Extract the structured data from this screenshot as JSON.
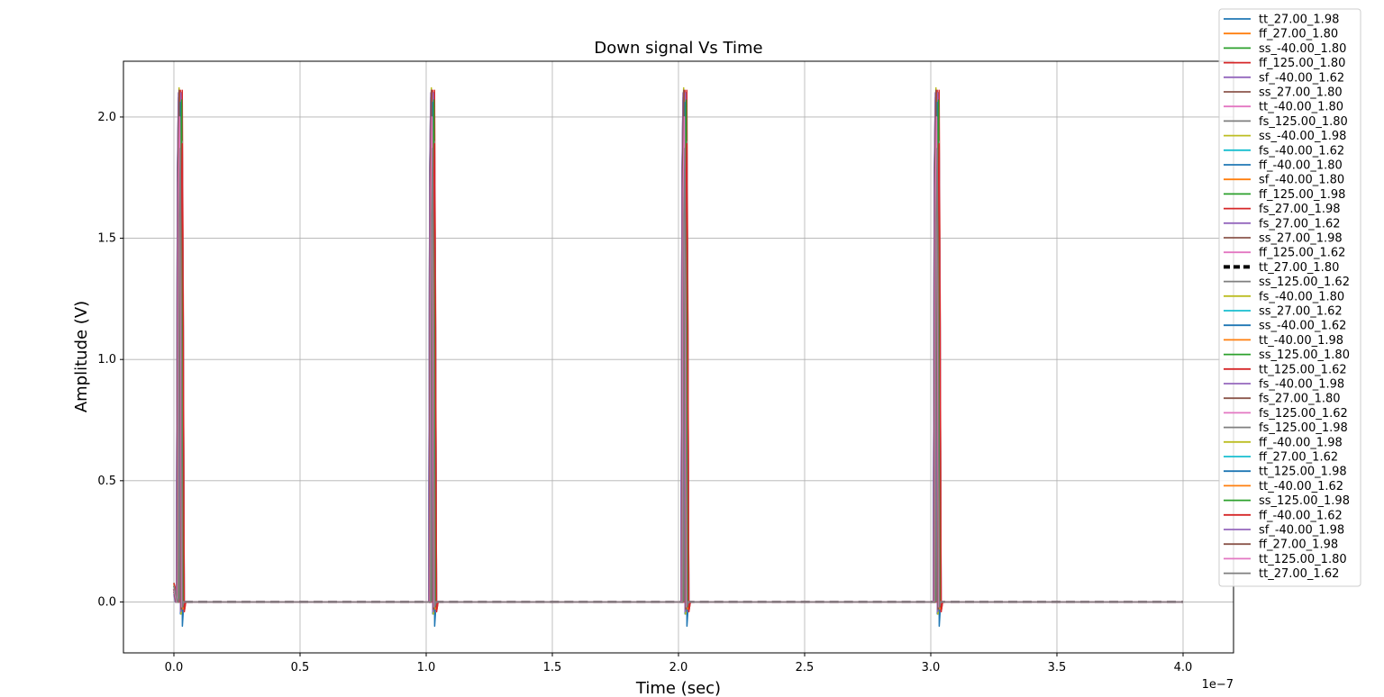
{
  "chart_data": {
    "type": "line",
    "title": "Down signal Vs Time",
    "xlabel": "Time (sec)",
    "ylabel": "Amplitude (V)",
    "x_offset_label": "1e−7",
    "xlim": [
      -0.2,
      4.2
    ],
    "ylim": [
      -0.21,
      2.23
    ],
    "x_unit_scale": 1e-07,
    "xticks": [
      "0.0",
      "0.5",
      "1.0",
      "1.5",
      "2.0",
      "2.5",
      "3.0",
      "3.5",
      "4.0"
    ],
    "yticks": [
      "0.0",
      "0.5",
      "1.0",
      "1.5",
      "2.0"
    ],
    "xtick_values": [
      0.0,
      0.5,
      1.0,
      1.5,
      2.0,
      2.5,
      3.0,
      3.5,
      4.0
    ],
    "ytick_values": [
      0.0,
      0.5,
      1.0,
      1.5,
      2.0
    ],
    "grid": true,
    "legend_position": "outside upper-right",
    "pulse_period": 1.0,
    "pulse_starts": [
      0.01,
      1.01,
      2.01,
      3.01
    ],
    "x_end": 4.0,
    "reference_series": "tt_27.00_1.80",
    "series": [
      {
        "name": "tt_27.00_1.98",
        "color": "#1f77b4",
        "peak": 2.07,
        "undershoot": -0.05
      },
      {
        "name": "ff_27.00_1.80",
        "color": "#ff7f0e",
        "peak": 2.09,
        "undershoot": -0.04
      },
      {
        "name": "ss_-40.00_1.80",
        "color": "#2ca02c",
        "peak": 2.05,
        "undershoot": -0.03
      },
      {
        "name": "ff_125.00_1.80",
        "color": "#d62728",
        "peak": 2.11,
        "undershoot": -0.04
      },
      {
        "name": "sf_-40.00_1.62",
        "color": "#9467bd",
        "peak": 2.02,
        "undershoot": -0.03
      },
      {
        "name": "ss_27.00_1.80",
        "color": "#8c564b",
        "peak": 2.04,
        "undershoot": -0.02
      },
      {
        "name": "tt_-40.00_1.80",
        "color": "#e377c2",
        "peak": 1.8,
        "undershoot": -0.03
      },
      {
        "name": "fs_125.00_1.80",
        "color": "#7f7f7f",
        "peak": 2.03,
        "undershoot": -0.04
      },
      {
        "name": "ss_-40.00_1.98",
        "color": "#bcbd22",
        "peak": 2.12,
        "undershoot": -0.05
      },
      {
        "name": "fs_-40.00_1.62",
        "color": "#17becf",
        "peak": 1.9,
        "undershoot": -0.03
      },
      {
        "name": "ff_-40.00_1.80",
        "color": "#1f77b4",
        "peak": 2.06,
        "undershoot": -0.1
      },
      {
        "name": "sf_-40.00_1.80",
        "color": "#ff7f0e",
        "peak": 2.08,
        "undershoot": -0.04
      },
      {
        "name": "ff_125.00_1.98",
        "color": "#2ca02c",
        "peak": 2.1,
        "undershoot": -0.03
      },
      {
        "name": "fs_27.00_1.98",
        "color": "#d62728",
        "peak": 2.11,
        "undershoot": -0.04
      },
      {
        "name": "fs_27.00_1.62",
        "color": "#9467bd",
        "peak": 2.0,
        "undershoot": -0.02
      },
      {
        "name": "ss_27.00_1.98",
        "color": "#8c564b",
        "peak": 2.06,
        "undershoot": -0.03
      },
      {
        "name": "ff_125.00_1.62",
        "color": "#e377c2",
        "peak": 1.85,
        "undershoot": -0.03
      },
      {
        "name": "tt_27.00_1.80",
        "color": "#000000",
        "peak": 1.92,
        "undershoot": -0.01
      },
      {
        "name": "ss_125.00_1.62",
        "color": "#7f7f7f",
        "peak": 1.95,
        "undershoot": -0.02
      },
      {
        "name": "fs_-40.00_1.80",
        "color": "#bcbd22",
        "peak": 2.04,
        "undershoot": -0.03
      },
      {
        "name": "ss_27.00_1.62",
        "color": "#17becf",
        "peak": 1.88,
        "undershoot": -0.02
      },
      {
        "name": "ss_-40.00_1.62",
        "color": "#1f77b4",
        "peak": 1.75,
        "undershoot": -0.04
      },
      {
        "name": "tt_-40.00_1.98",
        "color": "#ff7f0e",
        "peak": 2.09,
        "undershoot": -0.03
      },
      {
        "name": "ss_125.00_1.80",
        "color": "#2ca02c",
        "peak": 2.02,
        "undershoot": -0.02
      },
      {
        "name": "tt_125.00_1.62",
        "color": "#d62728",
        "peak": 1.86,
        "undershoot": -0.02
      },
      {
        "name": "fs_-40.00_1.98",
        "color": "#9467bd",
        "peak": 2.1,
        "undershoot": -0.04
      },
      {
        "name": "fs_27.00_1.80",
        "color": "#8c564b",
        "peak": 2.05,
        "undershoot": -0.03
      },
      {
        "name": "fs_125.00_1.62",
        "color": "#e377c2",
        "peak": 1.9,
        "undershoot": -0.02
      },
      {
        "name": "fs_125.00_1.98",
        "color": "#7f7f7f",
        "peak": 2.08,
        "undershoot": -0.03
      },
      {
        "name": "ff_-40.00_1.98",
        "color": "#bcbd22",
        "peak": 2.12,
        "undershoot": -0.05
      },
      {
        "name": "ff_27.00_1.62",
        "color": "#17becf",
        "peak": 1.92,
        "undershoot": -0.03
      },
      {
        "name": "tt_125.00_1.98",
        "color": "#1f77b4",
        "peak": 2.06,
        "undershoot": -0.04
      },
      {
        "name": "tt_-40.00_1.62",
        "color": "#ff7f0e",
        "peak": 1.84,
        "undershoot": -0.03
      },
      {
        "name": "ss_125.00_1.98",
        "color": "#2ca02c",
        "peak": 2.07,
        "undershoot": -0.02
      },
      {
        "name": "ff_-40.00_1.62",
        "color": "#d62728",
        "peak": 1.89,
        "undershoot": -0.04
      },
      {
        "name": "sf_-40.00_1.98",
        "color": "#9467bd",
        "peak": 2.1,
        "undershoot": -0.04
      },
      {
        "name": "ff_27.00_1.98",
        "color": "#8c564b",
        "peak": 2.11,
        "undershoot": -0.03
      },
      {
        "name": "tt_125.00_1.80",
        "color": "#e377c2",
        "peak": 2.0,
        "undershoot": -0.02
      },
      {
        "name": "tt_27.00_1.62",
        "color": "#7f7f7f",
        "peak": 1.87,
        "undershoot": -0.02
      }
    ]
  }
}
